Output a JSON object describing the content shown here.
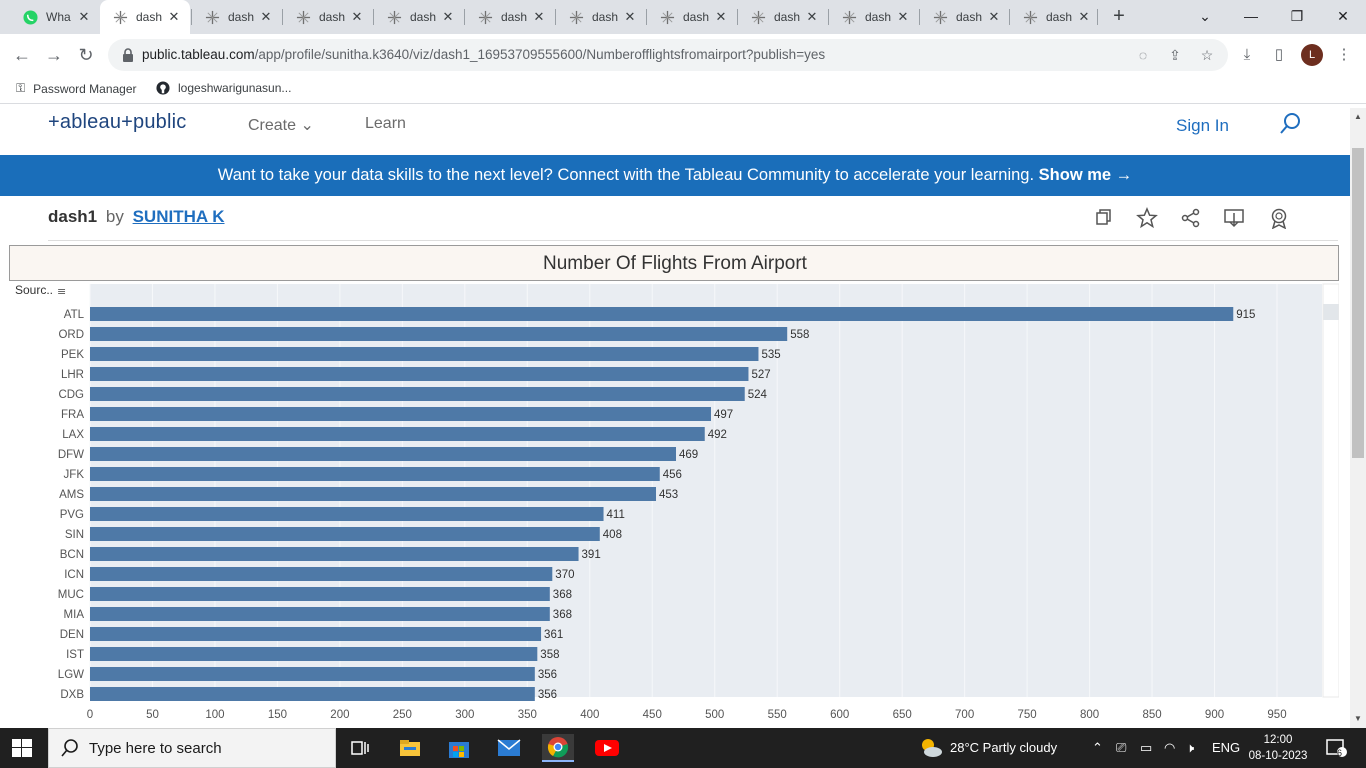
{
  "browser": {
    "tabs": [
      {
        "title": "Wha",
        "icon": "whatsapp-icon"
      },
      {
        "title": "dash",
        "icon": "tableau-icon",
        "active": true
      },
      {
        "title": "dash",
        "icon": "tableau-icon"
      },
      {
        "title": "dash",
        "icon": "tableau-icon"
      },
      {
        "title": "dash",
        "icon": "tableau-icon"
      },
      {
        "title": "dash",
        "icon": "tableau-icon"
      },
      {
        "title": "dash",
        "icon": "tableau-icon"
      },
      {
        "title": "dash",
        "icon": "tableau-icon"
      },
      {
        "title": "dash",
        "icon": "tableau-icon"
      },
      {
        "title": "dash",
        "icon": "tableau-icon"
      },
      {
        "title": "dash",
        "icon": "tableau-icon"
      },
      {
        "title": "dash",
        "icon": "tableau-icon"
      }
    ],
    "url_host": "public.tableau.com",
    "url_path": "/app/profile/sunitha.k3640/viz/dash1_16953709555600/Numberofflightsfromairport?publish=yes",
    "avatar_letter": "L",
    "bookmarks": [
      {
        "label": "Password Manager",
        "icon": "key-icon"
      },
      {
        "label": "logeshwarigunasun...",
        "icon": "github-icon"
      }
    ]
  },
  "site": {
    "logo_text": "+ableau+public",
    "nav": [
      {
        "label": "Create"
      },
      {
        "label": "Learn"
      }
    ],
    "sign_in": "Sign In",
    "banner_text": "Want to take your data skills to the next level? Connect with the Tableau Community to accelerate your learning.",
    "banner_cta": "Show me →",
    "viz_name": "dash1",
    "viz_by": "by",
    "viz_author": "SUNITHA K",
    "viz_title": "Number Of Flights From Airport"
  },
  "chart_data": {
    "type": "bar",
    "orientation": "horizontal",
    "title": "Number Of Flights From Airport",
    "ylabel": "Sourc..",
    "categories": [
      "ATL",
      "ORD",
      "PEK",
      "LHR",
      "CDG",
      "FRA",
      "LAX",
      "DFW",
      "JFK",
      "AMS",
      "PVG",
      "SIN",
      "BCN",
      "ICN",
      "MUC",
      "MIA",
      "DEN",
      "IST",
      "LGW",
      "DXB"
    ],
    "values": [
      915,
      558,
      535,
      527,
      524,
      497,
      492,
      469,
      456,
      453,
      411,
      408,
      391,
      370,
      368,
      368,
      361,
      358,
      356,
      356
    ],
    "xlim": [
      0,
      950
    ],
    "xticks": [
      0,
      50,
      100,
      150,
      200,
      250,
      300,
      350,
      400,
      450,
      500,
      550,
      600,
      650,
      700,
      750,
      800,
      850,
      900,
      950
    ],
    "bar_color": "#4e79a7",
    "grid": true
  },
  "taskbar": {
    "search_placeholder": "Type here to search",
    "weather": "28°C  Partly cloudy",
    "lang": "ENG",
    "time": "12:00",
    "date": "08-10-2023",
    "notifications": "6"
  }
}
